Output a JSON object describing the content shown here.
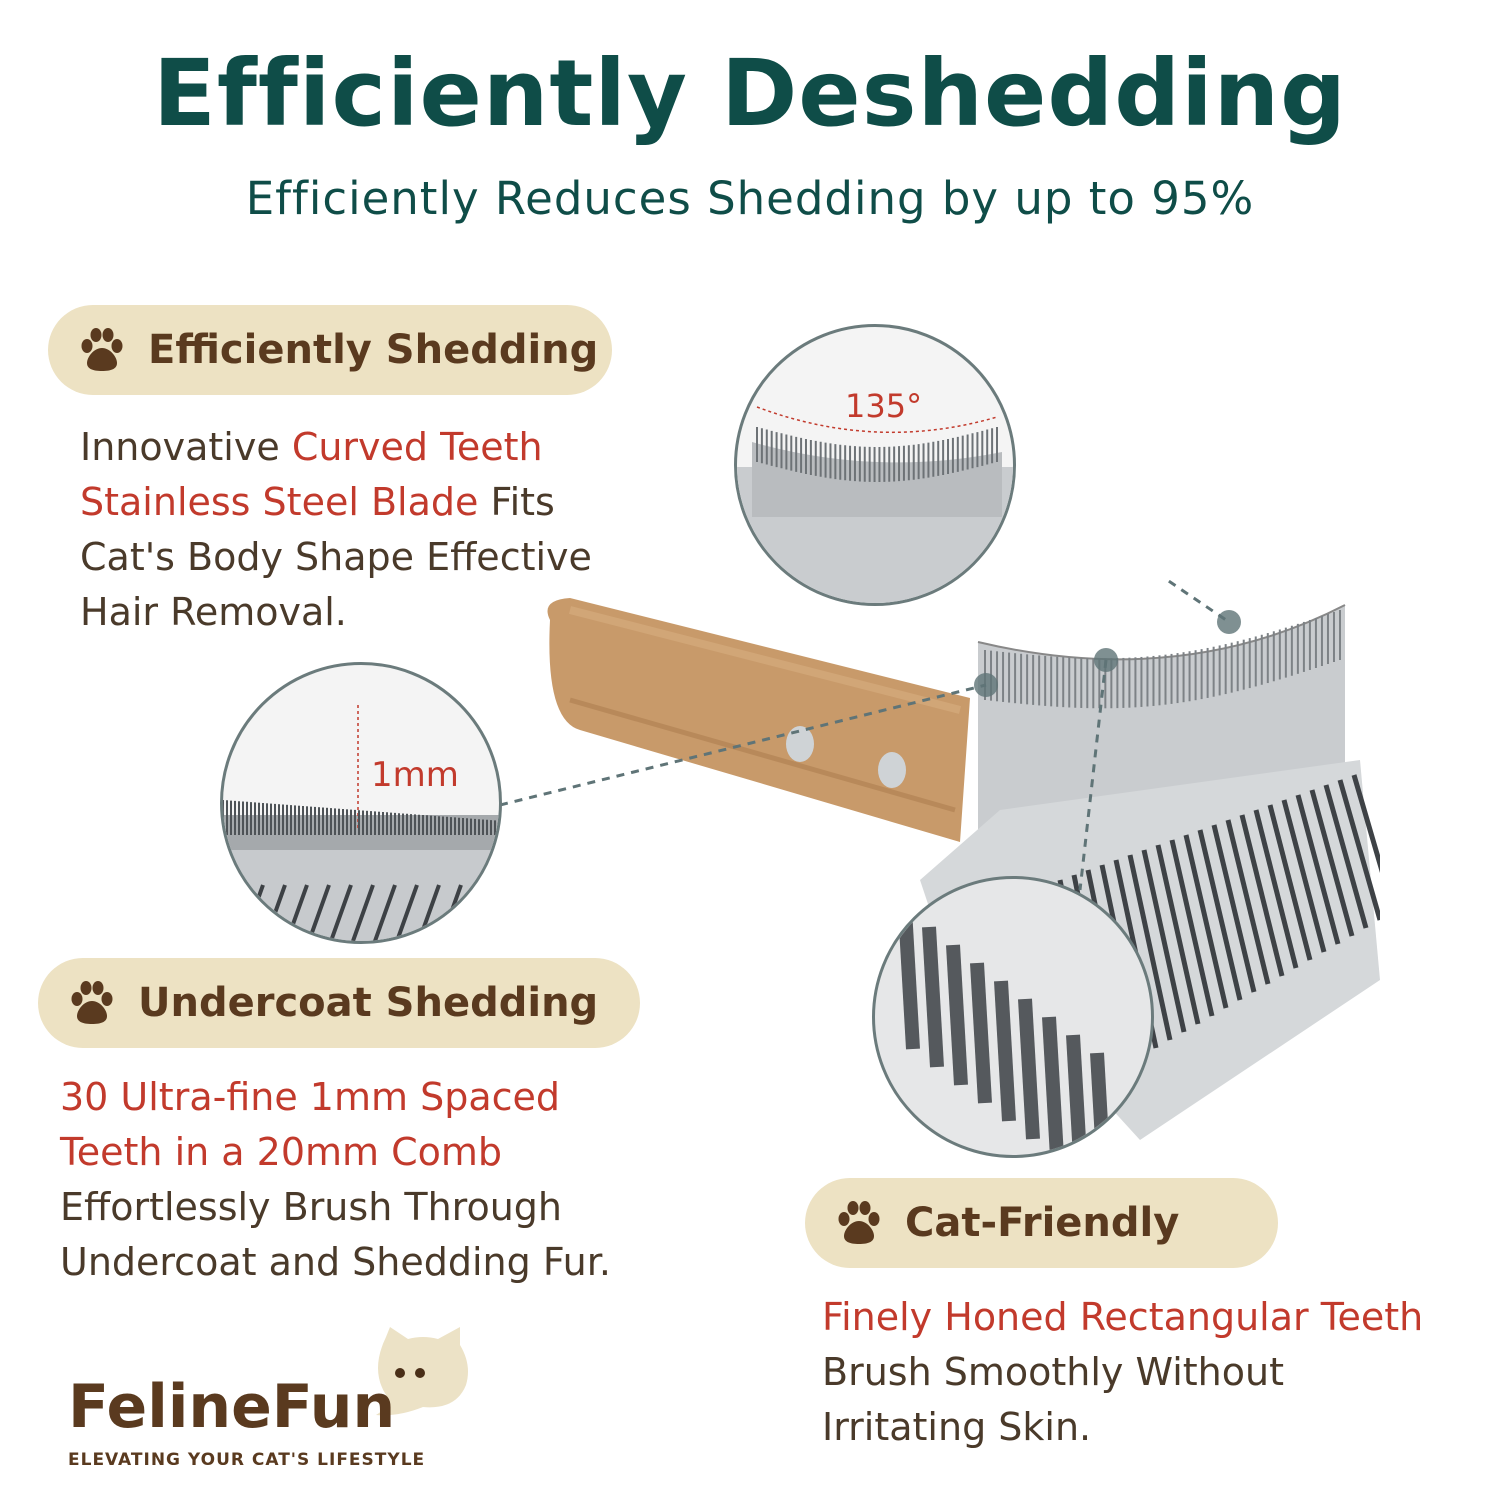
{
  "header": {
    "title": "Efficiently Deshedding",
    "subtitle": "Efficiently Reduces Shedding by up to 95%"
  },
  "features": [
    {
      "label": "Efficiently Shedding",
      "icon": "paw-icon",
      "text": [
        {
          "t": "Innovative ",
          "hl": false
        },
        {
          "t": "Curved Teeth Stainless Steel Blade",
          "hl": true
        },
        {
          "t": " Fits Cat's Body Shape Effective Hair Removal.",
          "hl": false
        }
      ]
    },
    {
      "label": "Undercoat Shedding",
      "icon": "paw-icon",
      "text": [
        {
          "t": "30 Ultra-fine 1mm Spaced Teeth in a 20mm Comb",
          "hl": true
        },
        {
          "t": " Effortlessly Brush Through Undercoat and Shedding Fur.",
          "hl": false
        }
      ]
    },
    {
      "label": "Cat-Friendly",
      "icon": "paw-icon",
      "text": [
        {
          "t": "Finely Honed Rectangular Teeth",
          "hl": true
        },
        {
          "t": " Brush Smoothly Without Irritating Skin.",
          "hl": false
        }
      ]
    }
  ],
  "callouts": {
    "angle": "135°",
    "spacing": "1mm"
  },
  "logo": {
    "name": "FelineFun",
    "tagline": "ELEVATING YOUR CAT'S LIFESTYLE"
  },
  "colors": {
    "title": "#0f4d48",
    "pill": "#ede2c3",
    "brown": "#5a3a1f",
    "highlight": "#c23a2c"
  }
}
